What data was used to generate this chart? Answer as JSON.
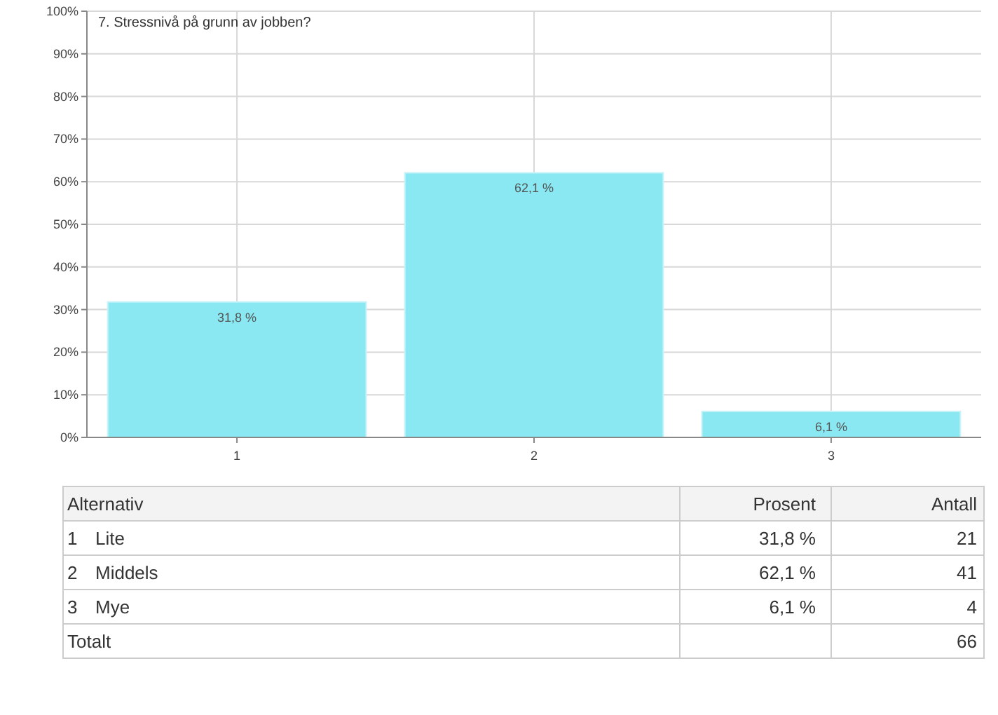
{
  "chart_data": {
    "type": "bar",
    "title": "7. Stressnivå på grunn av jobben?",
    "categories": [
      "1",
      "2",
      "3"
    ],
    "values": [
      31.8,
      62.1,
      6.1
    ],
    "value_labels": [
      "31,8 %",
      "62,1 %",
      "6,1 %"
    ],
    "color": "#8ae8f2",
    "ylim": [
      0,
      100
    ],
    "yticks": [
      {
        "value": 0,
        "label": "0%"
      },
      {
        "value": 10,
        "label": "10%"
      },
      {
        "value": 20,
        "label": "20%"
      },
      {
        "value": 30,
        "label": "30%"
      },
      {
        "value": 40,
        "label": "40%"
      },
      {
        "value": 50,
        "label": "50%"
      },
      {
        "value": 60,
        "label": "60%"
      },
      {
        "value": 70,
        "label": "70%"
      },
      {
        "value": 80,
        "label": "80%"
      },
      {
        "value": 90,
        "label": "90%"
      },
      {
        "value": 100,
        "label": "100%"
      }
    ],
    "grid": true,
    "annotations": [
      "Alternativ",
      "Prosent",
      "Antall",
      "1",
      "Lite",
      "21",
      "2",
      "Middels",
      "41",
      "3",
      "Mye",
      "4",
      "Totalt",
      "66"
    ]
  }
}
